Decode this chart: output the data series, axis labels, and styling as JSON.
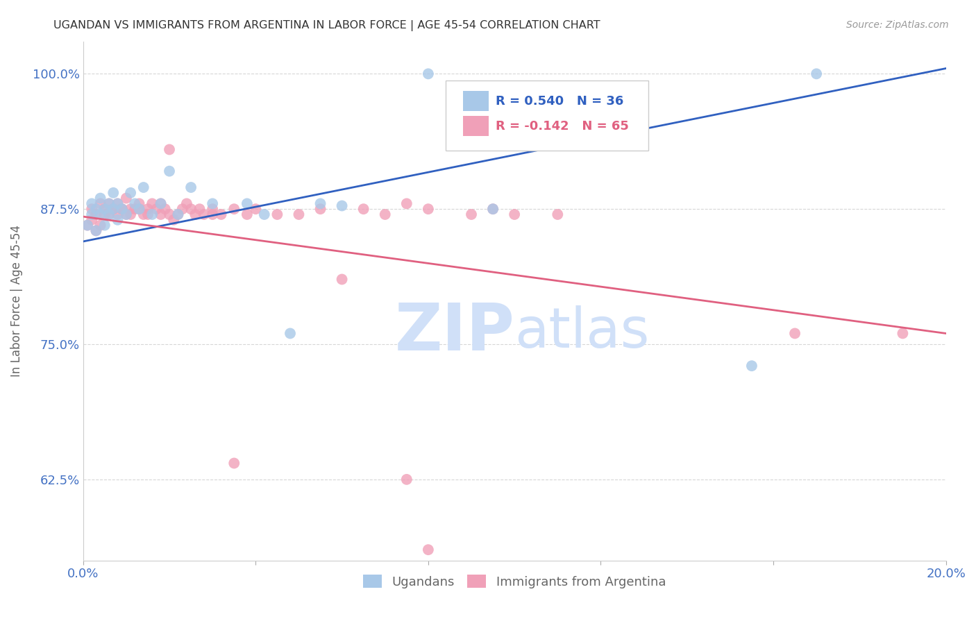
{
  "title": "UGANDAN VS IMMIGRANTS FROM ARGENTINA IN LABOR FORCE | AGE 45-54 CORRELATION CHART",
  "source_text": "Source: ZipAtlas.com",
  "ylabel_text": "In Labor Force | Age 45-54",
  "xmin": 0.0,
  "xmax": 0.2,
  "ymin": 0.55,
  "ymax": 1.03,
  "yticks": [
    0.625,
    0.75,
    0.875,
    1.0
  ],
  "ytick_labels": [
    "62.5%",
    "75.0%",
    "87.5%",
    "100.0%"
  ],
  "xticks": [
    0.0,
    0.04,
    0.08,
    0.12,
    0.16,
    0.2
  ],
  "xtick_labels": [
    "0.0%",
    "",
    "",
    "",
    "",
    "20.0%"
  ],
  "legend_r_blue": "R = 0.540",
  "legend_n_blue": "N = 36",
  "legend_r_pink": "R = -0.142",
  "legend_n_pink": "N = 65",
  "color_blue": "#a8c8e8",
  "color_pink": "#f0a0b8",
  "line_color_blue": "#3060c0",
  "line_color_pink": "#e06080",
  "watermark_color": "#d0e0f8",
  "background_color": "#ffffff",
  "grid_color": "#cccccc",
  "axis_label_color": "#666666",
  "tick_label_color": "#4472c4",
  "title_color": "#333333",
  "ugandan_x": [
    0.001,
    0.002,
    0.002,
    0.003,
    0.003,
    0.004,
    0.004,
    0.005,
    0.005,
    0.006,
    0.006,
    0.007,
    0.007,
    0.008,
    0.008,
    0.009,
    0.01,
    0.011,
    0.012,
    0.013,
    0.014,
    0.016,
    0.018,
    0.02,
    0.022,
    0.025,
    0.03,
    0.038,
    0.042,
    0.048,
    0.055,
    0.06,
    0.08,
    0.095,
    0.155,
    0.17
  ],
  "ugandan_y": [
    0.86,
    0.87,
    0.88,
    0.855,
    0.875,
    0.87,
    0.885,
    0.86,
    0.875,
    0.87,
    0.88,
    0.875,
    0.89,
    0.865,
    0.88,
    0.875,
    0.87,
    0.89,
    0.88,
    0.875,
    0.895,
    0.87,
    0.88,
    0.91,
    0.87,
    0.895,
    0.88,
    0.88,
    0.87,
    0.76,
    0.88,
    0.878,
    1.0,
    0.875,
    0.73,
    1.0
  ],
  "argentina_x": [
    0.001,
    0.002,
    0.002,
    0.003,
    0.003,
    0.004,
    0.004,
    0.005,
    0.005,
    0.006,
    0.006,
    0.007,
    0.007,
    0.008,
    0.008,
    0.009,
    0.009,
    0.01,
    0.01,
    0.011,
    0.011,
    0.012,
    0.013,
    0.013,
    0.014,
    0.015,
    0.015,
    0.016,
    0.017,
    0.018,
    0.018,
    0.019,
    0.02,
    0.021,
    0.022,
    0.023,
    0.024,
    0.025,
    0.026,
    0.027,
    0.028,
    0.03,
    0.032,
    0.035,
    0.038,
    0.04,
    0.045,
    0.05,
    0.055,
    0.06,
    0.065,
    0.07,
    0.075,
    0.08,
    0.09,
    0.095,
    0.1,
    0.11,
    0.165,
    0.19,
    0.02,
    0.03,
    0.035,
    0.075,
    0.08
  ],
  "argentina_y": [
    0.86,
    0.865,
    0.875,
    0.855,
    0.87,
    0.86,
    0.88,
    0.87,
    0.875,
    0.87,
    0.88,
    0.875,
    0.875,
    0.87,
    0.88,
    0.875,
    0.875,
    0.87,
    0.885,
    0.875,
    0.87,
    0.875,
    0.88,
    0.875,
    0.87,
    0.875,
    0.87,
    0.88,
    0.875,
    0.87,
    0.88,
    0.875,
    0.87,
    0.865,
    0.87,
    0.875,
    0.88,
    0.875,
    0.87,
    0.875,
    0.87,
    0.875,
    0.87,
    0.875,
    0.87,
    0.875,
    0.87,
    0.87,
    0.875,
    0.81,
    0.875,
    0.87,
    0.88,
    0.875,
    0.87,
    0.875,
    0.87,
    0.87,
    0.76,
    0.76,
    0.93,
    0.87,
    0.64,
    0.625,
    0.56
  ],
  "blue_line_x": [
    0.0,
    0.2
  ],
  "blue_line_y": [
    0.845,
    1.005
  ],
  "pink_line_x": [
    0.0,
    0.2
  ],
  "pink_line_y": [
    0.868,
    0.76
  ]
}
